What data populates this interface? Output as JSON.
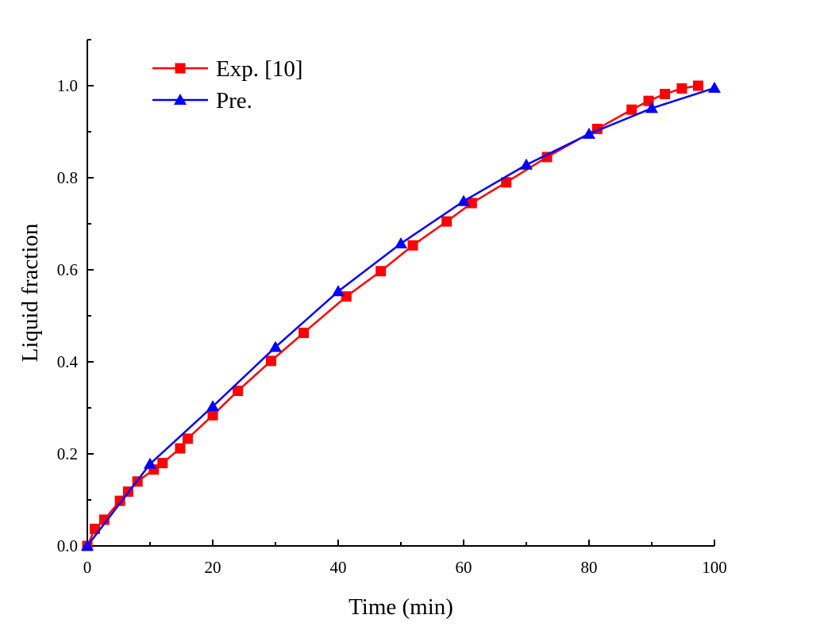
{
  "chart_data": {
    "type": "line",
    "title": "",
    "xlabel": "Time (min)",
    "ylabel": "Liquid fraction",
    "xlim": [
      0,
      100
    ],
    "ylim": [
      0,
      1.1
    ],
    "xticks": [
      0,
      20,
      40,
      60,
      80,
      100
    ],
    "xtick_labels": [
      "0",
      "20",
      "40",
      "60",
      "80",
      "100"
    ],
    "yticks": [
      0,
      0.2,
      0.4,
      0.6,
      0.8,
      1.0
    ],
    "ytick_labels": [
      "0.0",
      "0.2",
      "0.4",
      "0.6",
      "0.8",
      "1.0"
    ],
    "grid": false,
    "legend_position": "top-left",
    "series": [
      {
        "name": "Exp. [10]",
        "color": "#ff0000",
        "marker": "square",
        "x": [
          0,
          1.2,
          2.7,
          5.2,
          6.5,
          8.0,
          10.6,
          12.0,
          14.8,
          16.0,
          20.0,
          24.0,
          29.3,
          34.5,
          41.3,
          46.8,
          51.9,
          57.3,
          61.3,
          66.8,
          73.3,
          81.3,
          86.8,
          89.5,
          92.1,
          94.8,
          97.4
        ],
        "y": [
          0,
          0.037,
          0.057,
          0.098,
          0.118,
          0.14,
          0.166,
          0.18,
          0.212,
          0.233,
          0.284,
          0.337,
          0.402,
          0.463,
          0.542,
          0.597,
          0.653,
          0.705,
          0.745,
          0.79,
          0.845,
          0.906,
          0.948,
          0.967,
          0.982,
          0.994,
          1.0
        ]
      },
      {
        "name": "Pre.",
        "color": "#0000ff",
        "marker": "triangle",
        "x": [
          0,
          10,
          20,
          30,
          40,
          50,
          60,
          70,
          80,
          90,
          100
        ],
        "y": [
          0,
          0.178,
          0.303,
          0.432,
          0.553,
          0.657,
          0.749,
          0.828,
          0.895,
          0.951,
          0.995
        ]
      }
    ]
  }
}
